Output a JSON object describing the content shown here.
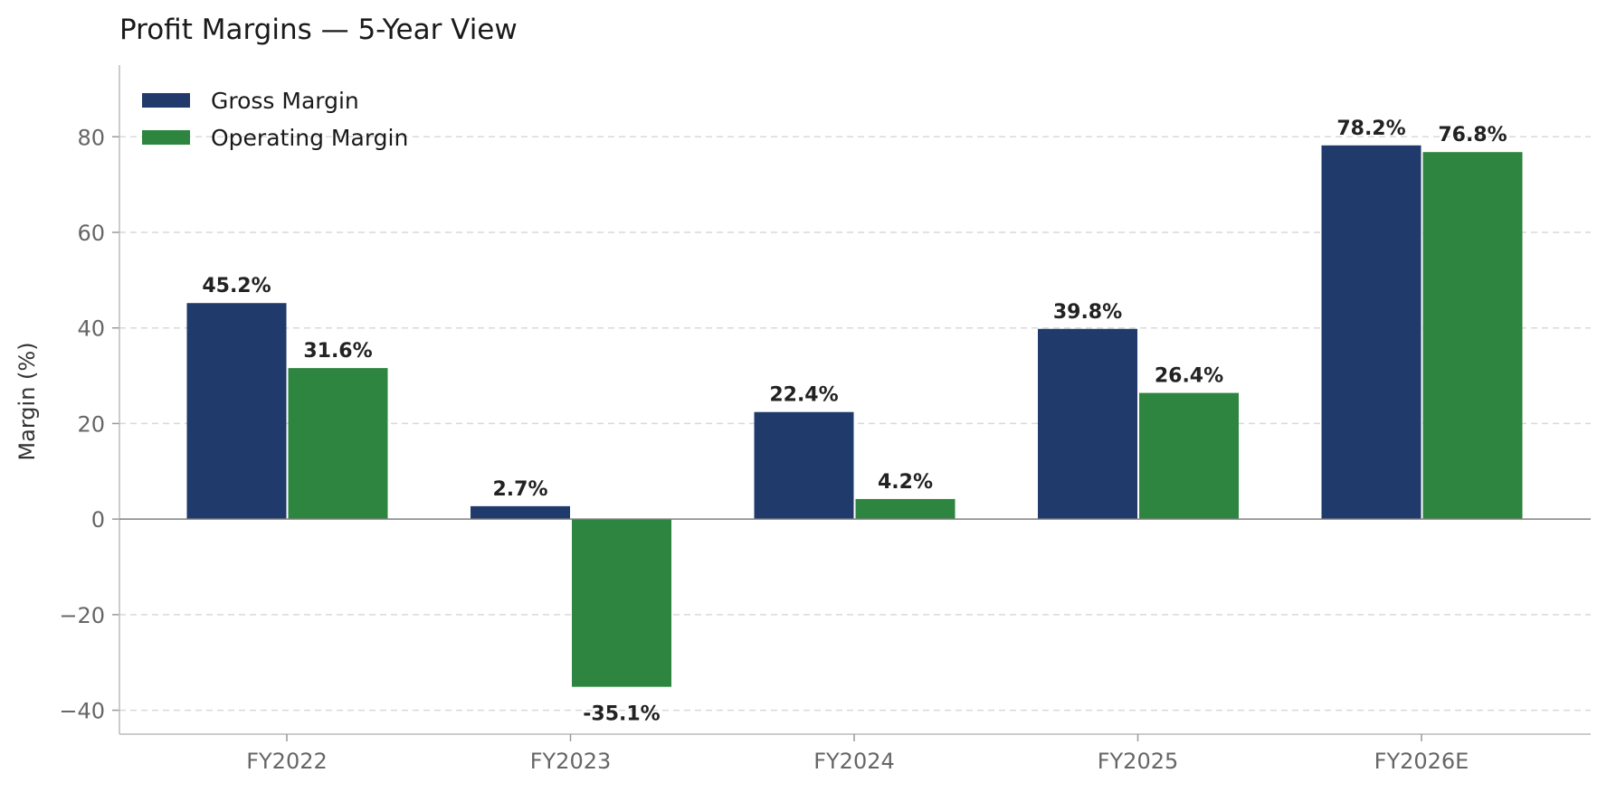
{
  "chart_data": {
    "type": "bar",
    "title": "Profit Margins — 5-Year View",
    "xlabel": "",
    "ylabel": "Margin (%)",
    "categories": [
      "FY2022",
      "FY2023",
      "FY2024",
      "FY2025",
      "FY2026E"
    ],
    "series": [
      {
        "name": "Gross Margin",
        "color": "#1f3a6b",
        "values": [
          45.2,
          2.7,
          22.4,
          39.8,
          78.2
        ],
        "labels": [
          "45.2%",
          "2.7%",
          "22.4%",
          "39.8%",
          "78.2%"
        ]
      },
      {
        "name": "Operating Margin",
        "color": "#2e8540",
        "values": [
          31.6,
          -35.1,
          4.2,
          26.4,
          76.8
        ],
        "labels": [
          "31.6%",
          "-35.1%",
          "4.2%",
          "26.4%",
          "76.8%"
        ]
      }
    ],
    "ylim": [
      -45,
      95
    ],
    "yticks": [
      -40,
      -20,
      0,
      20,
      40,
      60,
      80
    ],
    "ytick_labels": [
      "−40",
      "−20",
      "0",
      "20",
      "40",
      "60",
      "80"
    ],
    "grid": "y-dashed",
    "legend_position": "top-left"
  }
}
